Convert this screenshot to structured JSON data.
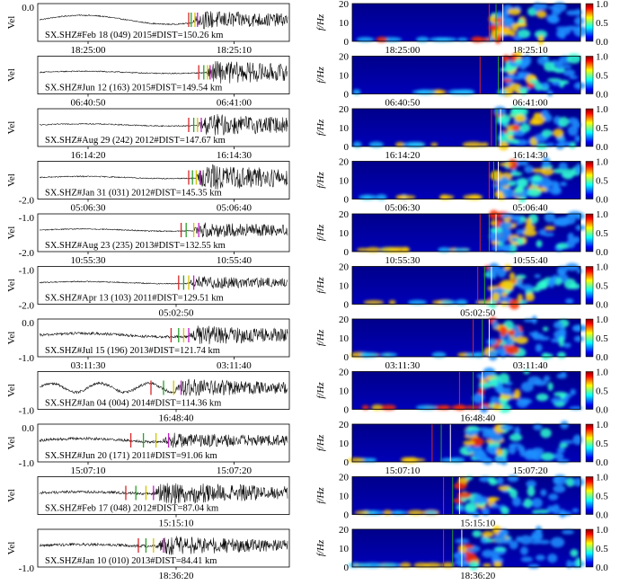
{
  "chart_data": {
    "type": "figure",
    "layout": "11 rows; left column seismogram waveforms, right column spectrograms",
    "colorbar": {
      "ticks": [
        "0.0",
        "0.5",
        "1.0"
      ],
      "colormap": "jet",
      "range": [
        0,
        1
      ]
    },
    "spectrogram_ylabel": "f/Hz",
    "spectrogram_ylim": [
      0,
      20
    ],
    "spectrogram_yticks": [
      "0",
      "10",
      "20"
    ],
    "waveform_ylabel": "Vel",
    "pick_colors": [
      "#d62728",
      "#2ca02c",
      "#d4c400",
      "#c020c0"
    ],
    "rows": [
      {
        "label": "SX.SHZ#Feb 18 (049) 2015#DIST=150.26 km",
        "ytick_top": "0.0",
        "ytick_bottom": "",
        "time_ticks": [
          "18:25:00",
          "18:25:10"
        ],
        "spec_time_ticks": [
          "18:25:00",
          "18:25:10"
        ],
        "onset": 0.62,
        "amplitude": 0.55,
        "picks": [
          0.6,
          0.61,
          0.625,
          0.635
        ],
        "spec_picks": [
          0.6,
          0.63,
          0.66
        ]
      },
      {
        "label": "SX.SHZ#Jun 12 (163) 2015#DIST=149.54 km",
        "ytick_top": "",
        "ytick_bottom": "",
        "time_ticks": [
          "06:40:50",
          "06:41:00"
        ],
        "spec_time_ticks": [
          "06:40:50",
          "06:41:00"
        ],
        "onset": 0.67,
        "amplitude": 0.75,
        "picks": [
          0.64,
          0.66,
          0.675,
          0.685
        ],
        "spec_picks": [
          0.56,
          0.64,
          0.66
        ]
      },
      {
        "label": "SX.SHZ#Aug 29 (242) 2012#DIST=147.67 km",
        "ytick_top": "",
        "ytick_bottom": "",
        "time_ticks": [
          "16:14:20",
          "16:14:30"
        ],
        "spec_time_ticks": [
          "16:14:20",
          "16:14:30"
        ],
        "onset": 0.64,
        "amplitude": 0.7,
        "picks": [
          0.6,
          0.62,
          0.635,
          0.65
        ],
        "spec_picks": [
          0.61,
          0.63,
          0.65
        ]
      },
      {
        "label": "SX.SHZ#Jan 31 (031) 2012#DIST=145.35 km",
        "ytick_top": "",
        "ytick_bottom": "-2.0",
        "time_ticks": [
          "05:06:30",
          "05:06:40"
        ],
        "spec_time_ticks": [
          "05:06:30",
          "05:06:40"
        ],
        "onset": 0.63,
        "amplitude": 0.85,
        "picks": [
          0.6,
          0.615,
          0.63,
          0.645
        ],
        "spec_picks": [
          0.6,
          0.62,
          0.64
        ]
      },
      {
        "label": "SX.SHZ#Aug 23 (235) 2013#DIST=132.55 km",
        "ytick_top": "-1.0",
        "ytick_bottom": "-2.0",
        "time_ticks": [
          "10:55:30",
          "10:55:40"
        ],
        "spec_time_ticks": [
          "10:55:30",
          "10:55:40"
        ],
        "onset": 0.62,
        "amplitude": 0.45,
        "picks": [
          0.57,
          0.59,
          0.62,
          0.64
        ],
        "spec_picks": [
          0.56,
          0.6,
          0.63
        ]
      },
      {
        "label": "SX.SHZ#Apr 13 (103) 2011#DIST=129.51 km",
        "ytick_top": "-1.0",
        "ytick_bottom": "-2.0",
        "time_ticks": [
          "05:02:50"
        ],
        "spec_time_ticks": [
          "05:02:50"
        ],
        "onset": 0.6,
        "amplitude": 0.35,
        "picks": [
          0.56,
          0.58,
          0.6,
          0.62
        ],
        "spec_picks": [
          0.55,
          0.58,
          0.61
        ]
      },
      {
        "label": "SX.SHZ#Jul 15 (196) 2013#DIST=121.74 km",
        "ytick_top": "0.0",
        "ytick_bottom": "-1.0",
        "time_ticks": [
          "03:11:30",
          "03:11:40"
        ],
        "spec_time_ticks": [
          "03:11:30",
          "03:11:40"
        ],
        "onset": 0.6,
        "amplitude": 0.6,
        "picks": [
          0.53,
          0.56,
          0.58,
          0.6
        ],
        "spec_picks": [
          0.53,
          0.57,
          0.6
        ]
      },
      {
        "label": "SX.SHZ#Jan 04 (004) 2014#DIST=114.36 km",
        "ytick_top": "",
        "ytick_bottom": "-1.0",
        "time_ticks": [
          "16:48:40"
        ],
        "spec_time_ticks": [
          "16:48:40"
        ],
        "onset": 0.55,
        "amplitude": 0.55,
        "picks": [
          0.45,
          0.5,
          0.54,
          0.57
        ],
        "spec_picks": [
          0.47,
          0.53,
          0.57
        ]
      },
      {
        "label": "SX.SHZ#Jun 20 (171) 2011#DIST=91.06 km",
        "ytick_top": "0.0",
        "ytick_bottom": "-1.0",
        "time_ticks": [
          "15:07:10",
          "15:07:20"
        ],
        "spec_time_ticks": [
          "15:07:10",
          "15:07:20"
        ],
        "onset": 0.5,
        "amplitude": 0.45,
        "picks": [
          0.37,
          0.42,
          0.47,
          0.52
        ],
        "spec_picks": [
          0.35,
          0.39,
          0.43
        ]
      },
      {
        "label": "SX.SHZ#Feb 17 (048) 2012#DIST=87.04 km",
        "ytick_top": "",
        "ytick_bottom": "",
        "time_ticks": [
          "15:15:10"
        ],
        "spec_time_ticks": [
          "15:15:10"
        ],
        "onset": 0.46,
        "amplitude": 0.75,
        "picks": [
          0.35,
          0.39,
          0.43,
          0.46
        ],
        "spec_picks": [
          0.4,
          0.44,
          0.47
        ]
      },
      {
        "label": "SX.SHZ#Jan 10 (010) 2013#DIST=84.41 km",
        "ytick_top": "",
        "ytick_bottom": "-1.0",
        "time_ticks": [
          "18:36:20"
        ],
        "spec_time_ticks": [
          "18:36:20"
        ],
        "onset": 0.47,
        "amplitude": 0.6,
        "picks": [
          0.4,
          0.43,
          0.46,
          0.5
        ],
        "spec_picks": [
          0.4,
          0.44,
          0.48
        ]
      }
    ]
  }
}
